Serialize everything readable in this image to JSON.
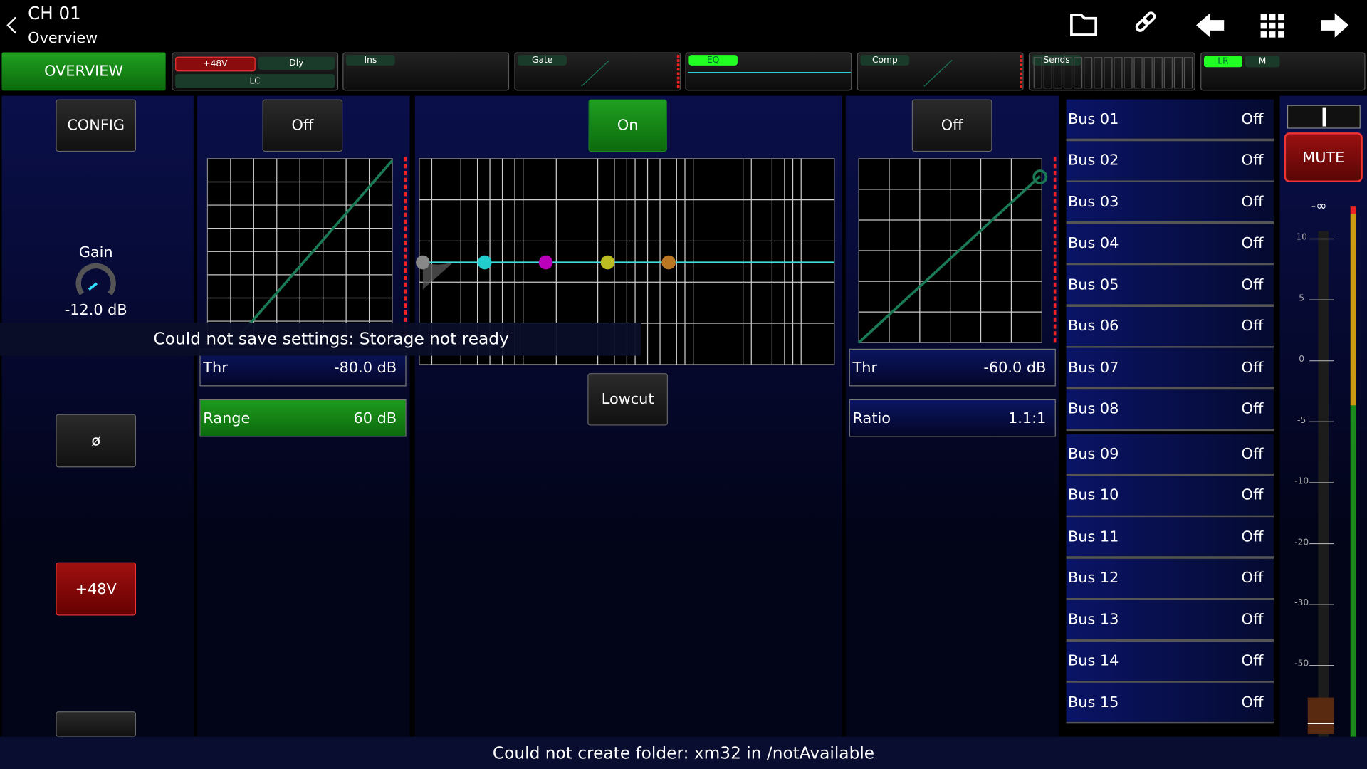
{
  "header": {
    "channel": "CH 01",
    "subtitle": "Overview"
  },
  "tabs": {
    "overview": "OVERVIEW",
    "phantom": "+48V",
    "delay": "Dly",
    "lowcut": "LC",
    "insert": "Ins",
    "gate": "Gate",
    "eq": "EQ",
    "comp": "Comp",
    "sends": "Sends",
    "lr": "LR",
    "mono": "M"
  },
  "config": {
    "button": "CONFIG",
    "gain_label": "Gain",
    "gain_value": "-12.0 dB",
    "phase": "ø",
    "phantom": "+48V"
  },
  "gate": {
    "state": "Off",
    "thr_label": "Thr",
    "thr_value": "-80.0 dB",
    "range_label": "Range",
    "range_value": "60 dB"
  },
  "eq": {
    "state": "On",
    "mode": "Lowcut"
  },
  "comp": {
    "state": "Off",
    "thr_label": "Thr",
    "thr_value": "-60.0 dB",
    "ratio_label": "Ratio",
    "ratio_value": "1.1:1"
  },
  "sends": [
    {
      "name": "Bus 01",
      "state": "Off"
    },
    {
      "name": "Bus 02",
      "state": "Off"
    },
    {
      "name": "Bus 03",
      "state": "Off"
    },
    {
      "name": "Bus 04",
      "state": "Off"
    },
    {
      "name": "Bus 05",
      "state": "Off"
    },
    {
      "name": "Bus 06",
      "state": "Off"
    },
    {
      "name": "Bus 07",
      "state": "Off"
    },
    {
      "name": "Bus 08",
      "state": "Off"
    },
    {
      "name": "Bus 09",
      "state": "Off"
    },
    {
      "name": "Bus 10",
      "state": "Off"
    },
    {
      "name": "Bus 11",
      "state": "Off"
    },
    {
      "name": "Bus 12",
      "state": "Off"
    },
    {
      "name": "Bus 13",
      "state": "Off"
    },
    {
      "name": "Bus 14",
      "state": "Off"
    },
    {
      "name": "Bus 15",
      "state": "Off"
    }
  ],
  "meter": {
    "mute": "MUTE",
    "fader_value": "-∞",
    "scale": [
      "10",
      "5",
      "0",
      "-5",
      "-10",
      "-20",
      "-30",
      "-50"
    ]
  },
  "notifications": [
    "Could not save settings: Storage not ready",
    "Could not create folder: xm32 in /notAvailable"
  ]
}
